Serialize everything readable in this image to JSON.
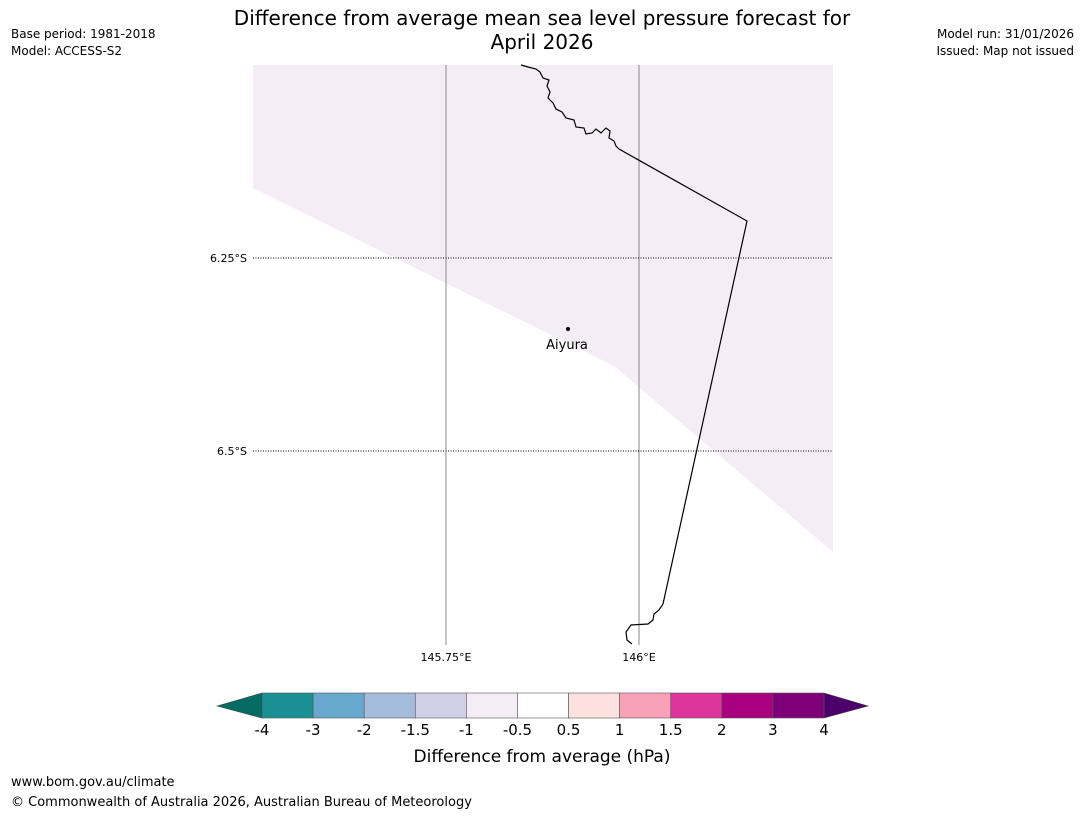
{
  "header": {
    "title_line1": "Difference from average mean sea level pressure forecast for",
    "title_line2": "April 2026",
    "base_period": "Base period: 1981-2018",
    "model": "Model: ACCESS-S2",
    "model_run": "Model run: 31/01/2026",
    "issued": "Issued: Map not issued"
  },
  "map": {
    "latitudes": [
      "6.25°S",
      "6.5°S"
    ],
    "longitudes": [
      "145.75°E",
      "146°E"
    ],
    "place": {
      "name": "Aiyura"
    },
    "shaded_fill": "#f4edf6",
    "background_fill": "#ffffff"
  },
  "colorbar": {
    "ticks": [
      "-4",
      "-3",
      "-2",
      "-1.5",
      "-1",
      "-0.5",
      "0.5",
      "1",
      "1.5",
      "2",
      "3",
      "4"
    ],
    "colors": [
      "#1a8f94",
      "#68a8cf",
      "#a6bcdc",
      "#d2d0e6",
      "#f4edf6",
      "#ffffff",
      "#fde0e0",
      "#f7a1b7",
      "#dc349a",
      "#a8007e",
      "#7d0078"
    ],
    "under_color": "#046c62",
    "over_color": "#4d006b",
    "label": "Difference from average (hPa)"
  },
  "footer": {
    "url": "www.bom.gov.au/climate",
    "copyright": "© Commonwealth of Australia 2026, Australian Bureau of Meteorology"
  }
}
